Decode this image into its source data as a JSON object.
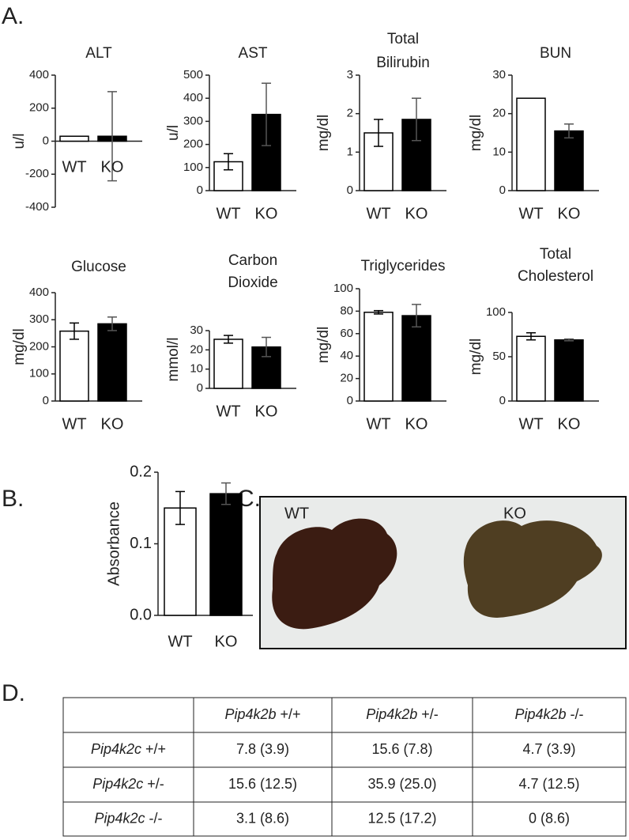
{
  "panel_labels": [
    "A.",
    "B.",
    "C.",
    "D."
  ],
  "chart_data": [
    {
      "type": "bar",
      "title": [
        "ALT"
      ],
      "y_label": "u/l",
      "categories": [
        "WT",
        "KO"
      ],
      "values": [
        30,
        30
      ],
      "errors": [
        null,
        270
      ],
      "colors": [
        "#ffffff",
        "#000000"
      ],
      "ylim": [
        -400,
        400
      ],
      "yticks": [
        -400,
        -200,
        0,
        200,
        400
      ]
    },
    {
      "type": "bar",
      "title": [
        "AST"
      ],
      "y_label": "u/l",
      "categories": [
        "WT",
        "KO"
      ],
      "values": [
        125,
        330
      ],
      "errors": [
        35,
        135
      ],
      "colors": [
        "#ffffff",
        "#000000"
      ],
      "ylim": [
        0,
        500
      ],
      "yticks": [
        0,
        100,
        200,
        300,
        400,
        500
      ]
    },
    {
      "type": "bar",
      "title": [
        "Total",
        "Bilirubin"
      ],
      "y_label": "mg/dl",
      "categories": [
        "WT",
        "KO"
      ],
      "values": [
        1.5,
        1.85
      ],
      "errors": [
        0.35,
        0.55
      ],
      "colors": [
        "#ffffff",
        "#000000"
      ],
      "ylim": [
        0,
        3
      ],
      "yticks": [
        0,
        1,
        2,
        3
      ]
    },
    {
      "type": "bar",
      "title": [
        "BUN"
      ],
      "y_label": "mg/dl",
      "categories": [
        "WT",
        "KO"
      ],
      "values": [
        24,
        15.5
      ],
      "errors": [
        null,
        1.8
      ],
      "colors": [
        "#ffffff",
        "#000000"
      ],
      "ylim": [
        0,
        30
      ],
      "yticks": [
        0,
        10,
        20,
        30
      ]
    },
    {
      "type": "bar",
      "title": [
        "Glucose"
      ],
      "y_label": "mg/dl",
      "categories": [
        "WT",
        "KO"
      ],
      "values": [
        258,
        285
      ],
      "errors": [
        30,
        25
      ],
      "colors": [
        "#ffffff",
        "#000000"
      ],
      "ylim": [
        0,
        400
      ],
      "yticks": [
        0,
        100,
        200,
        300,
        400
      ]
    },
    {
      "type": "bar",
      "title": [
        "Carbon",
        "Dioxide"
      ],
      "y_label": "mmol/l",
      "categories": [
        "WT",
        "KO"
      ],
      "values": [
        25.5,
        21.5
      ],
      "errors": [
        2,
        5
      ],
      "colors": [
        "#ffffff",
        "#000000"
      ],
      "ylim": [
        0,
        30
      ],
      "yticks": [
        0,
        10,
        20,
        30
      ]
    },
    {
      "type": "bar",
      "title": [
        "Triglycerides"
      ],
      "y_label": "mg/dl",
      "categories": [
        "WT",
        "KO"
      ],
      "values": [
        79,
        76
      ],
      "errors": [
        1.5,
        10
      ],
      "colors": [
        "#ffffff",
        "#000000"
      ],
      "ylim": [
        0,
        100
      ],
      "yticks": [
        0,
        20,
        40,
        60,
        80,
        100
      ]
    },
    {
      "type": "bar",
      "title": [
        "Total",
        "Cholesterol"
      ],
      "y_label": "mg/dl",
      "categories": [
        "WT",
        "KO"
      ],
      "values": [
        73,
        69
      ],
      "errors": [
        4,
        1
      ],
      "colors": [
        "#ffffff",
        "#000000"
      ],
      "ylim": [
        0,
        100
      ],
      "yticks": [
        0,
        50,
        100
      ]
    },
    {
      "type": "bar",
      "title": [],
      "y_label": "Absorbance",
      "categories": [
        "WT",
        "KO"
      ],
      "values": [
        0.15,
        0.17
      ],
      "errors": [
        0.023,
        0.015
      ],
      "colors": [
        "#ffffff",
        "#000000"
      ],
      "ylim": [
        0,
        0.2
      ],
      "yticks": [
        {
          "value": 0,
          "label": "0.0"
        },
        0.1,
        0.2
      ]
    }
  ],
  "photo": {
    "labels": [
      "WT",
      "KO"
    ]
  },
  "table": {
    "columns": [
      {
        "gene": "Pip4k2b",
        "genotype": "+/+"
      },
      {
        "gene": "Pip4k2b",
        "genotype": "+/-"
      },
      {
        "gene": "Pip4k2b",
        "genotype": "-/-"
      }
    ],
    "rows": [
      {
        "gene": "Pip4k2c",
        "genotype": "+/+",
        "cells": [
          "7.8 (3.9)",
          "15.6 (7.8)",
          "4.7 (3.9)"
        ]
      },
      {
        "gene": "Pip4k2c",
        "genotype": "+/-",
        "cells": [
          "15.6 (12.5)",
          "35.9 (25.0)",
          "4.7 (12.5)"
        ]
      },
      {
        "gene": "Pip4k2c",
        "genotype": "-/-",
        "cells": [
          "3.1 (8.6)",
          "12.5 (17.2)",
          "0 (8.6)"
        ]
      }
    ]
  }
}
